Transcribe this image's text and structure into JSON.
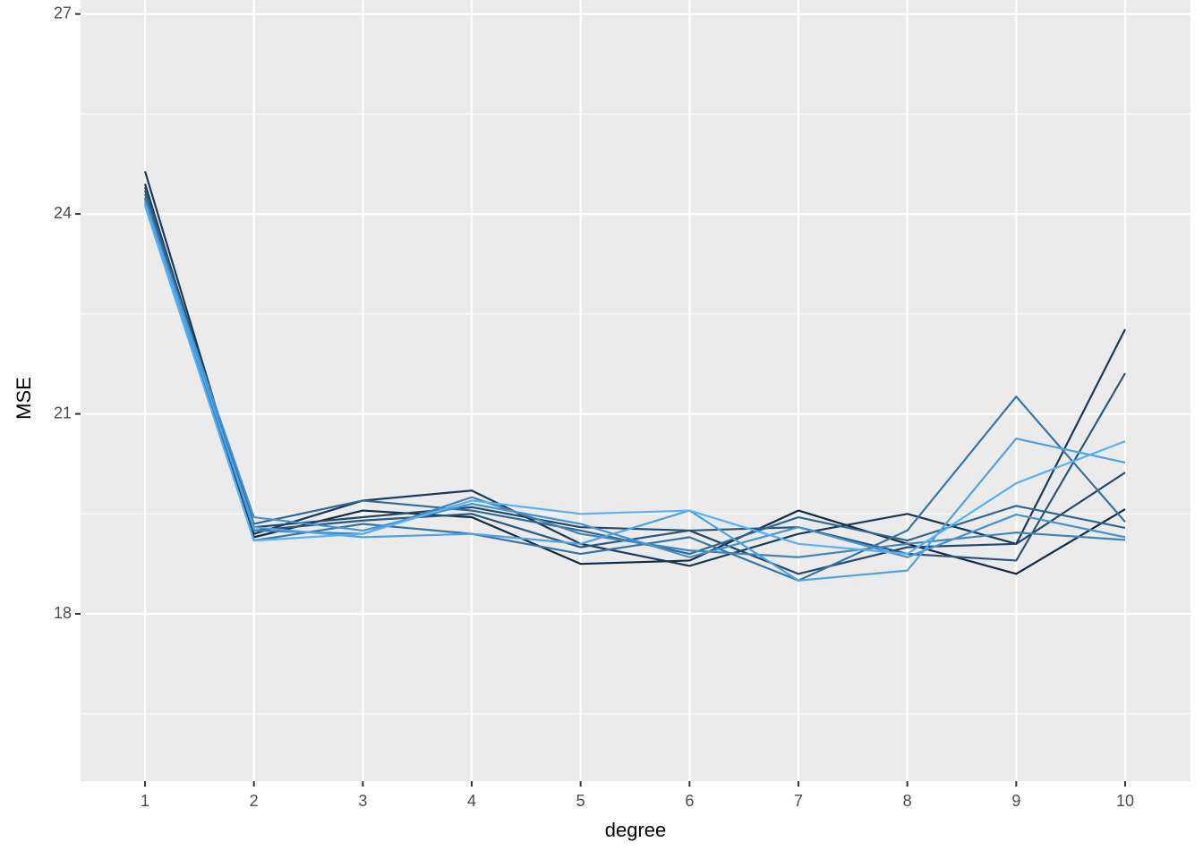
{
  "chart_data": {
    "type": "line",
    "x_label": "degree",
    "y_label": "MSE",
    "x": [
      1,
      2,
      3,
      4,
      5,
      6,
      7,
      8,
      9,
      10
    ],
    "xlim": [
      0.408,
      10.6
    ],
    "xticks": [
      1,
      2,
      3,
      4,
      5,
      6,
      7,
      8,
      9,
      10
    ],
    "ylim": [
      15.49,
      27.21
    ],
    "yticks": [
      18,
      21,
      24,
      27
    ],
    "grid": true,
    "series": [
      {
        "color": "#132B43",
        "values": [
          24.45,
          19.15,
          19.55,
          19.45,
          18.75,
          18.8,
          19.55,
          19.05,
          18.6,
          19.57
        ]
      },
      {
        "color": "#1A3A57",
        "values": [
          24.64,
          19.2,
          19.7,
          19.85,
          19.05,
          18.72,
          19.2,
          19.5,
          19.05,
          22.27
        ]
      },
      {
        "color": "#22496B",
        "values": [
          24.4,
          19.3,
          19.45,
          19.6,
          19.3,
          19.25,
          18.6,
          19.0,
          19.05,
          20.12
        ]
      },
      {
        "color": "#29587F",
        "values": [
          24.35,
          19.25,
          19.4,
          19.5,
          19.0,
          19.25,
          19.3,
          18.9,
          18.8,
          21.61
        ]
      },
      {
        "color": "#316793",
        "values": [
          24.3,
          19.35,
          19.7,
          19.55,
          19.25,
          18.9,
          19.45,
          19.1,
          19.62,
          19.29
        ]
      },
      {
        "color": "#3875A7",
        "values": [
          24.25,
          19.1,
          19.35,
          19.2,
          18.9,
          19.15,
          18.5,
          19.25,
          21.26,
          19.38
        ]
      },
      {
        "color": "#4084BB",
        "values": [
          24.22,
          19.25,
          19.2,
          19.75,
          19.2,
          18.95,
          18.85,
          19.05,
          19.22,
          19.11
        ]
      },
      {
        "color": "#4793CF",
        "values": [
          24.18,
          19.45,
          19.25,
          19.65,
          19.35,
          18.85,
          19.3,
          18.85,
          19.49,
          19.15
        ]
      },
      {
        "color": "#4FA2E3",
        "values": [
          24.15,
          19.3,
          19.15,
          19.2,
          19.05,
          19.55,
          18.5,
          18.65,
          20.63,
          20.27
        ]
      },
      {
        "color": "#56B1F7",
        "values": [
          24.12,
          19.1,
          19.2,
          19.7,
          19.5,
          19.55,
          19.05,
          18.9,
          19.96,
          20.59
        ]
      }
    ]
  }
}
